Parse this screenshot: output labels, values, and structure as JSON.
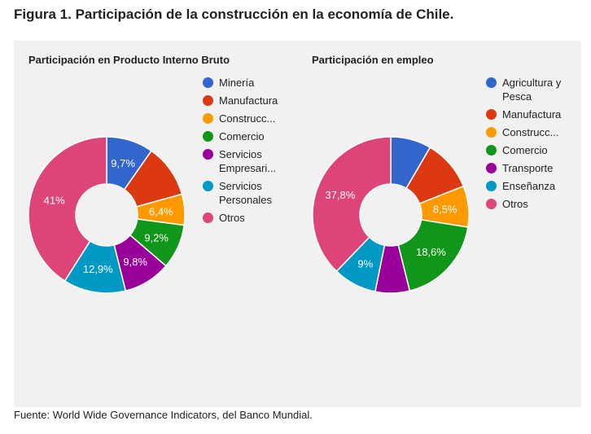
{
  "title": "Figura 1. Participación de la construcción en la economía de Chile.",
  "footer": "Fuente: World Wide Governance Indicators, del Banco Mundial.",
  "chart_data": [
    {
      "type": "pie",
      "title": "Participación en Producto Interno Bruto",
      "donut": true,
      "slices": [
        {
          "name": "Minería",
          "legend": [
            "Minería"
          ],
          "value": 9.7,
          "label": "9,7%",
          "color": "#3366cc"
        },
        {
          "name": "Manufactura",
          "legend": [
            "Manufactura"
          ],
          "value": 11.0,
          "label": null,
          "color": "#dc3912"
        },
        {
          "name": "Construcción",
          "legend": [
            "Construcc..."
          ],
          "value": 6.4,
          "label": "6,4%",
          "color": "#ff9900"
        },
        {
          "name": "Comercio",
          "legend": [
            "Comercio"
          ],
          "value": 9.2,
          "label": "9,2%",
          "color": "#109618"
        },
        {
          "name": "Servicios Empresariales",
          "legend": [
            "Servicios",
            "Empresari..."
          ],
          "value": 9.8,
          "label": "9,8%",
          "color": "#990099"
        },
        {
          "name": "Servicios Personales",
          "legend": [
            "Servicios",
            "Personales"
          ],
          "value": 12.9,
          "label": "12,9%",
          "color": "#0099c6"
        },
        {
          "name": "Otros",
          "legend": [
            "Otros"
          ],
          "value": 41,
          "label": "41%",
          "color": "#dd4477"
        }
      ]
    },
    {
      "type": "pie",
      "title": "Participación en empleo",
      "donut": true,
      "slices": [
        {
          "name": "Agricultura y Pesca",
          "legend": [
            "Agricultura y",
            "Pesca"
          ],
          "value": 8.4,
          "label": null,
          "color": "#3366cc"
        },
        {
          "name": "Manufactura",
          "legend": [
            "Manufactura"
          ],
          "value": 10.6,
          "label": null,
          "color": "#dc3912"
        },
        {
          "name": "Construcción",
          "legend": [
            "Construcc..."
          ],
          "value": 8.5,
          "label": "8,5%",
          "color": "#ff9900"
        },
        {
          "name": "Comercio",
          "legend": [
            "Comercio"
          ],
          "value": 18.6,
          "label": "18,6%",
          "color": "#109618"
        },
        {
          "name": "Transporte",
          "legend": [
            "Transporte"
          ],
          "value": 7.1,
          "label": null,
          "color": "#990099"
        },
        {
          "name": "Enseñanza",
          "legend": [
            "Enseñanza"
          ],
          "value": 9,
          "label": "9%",
          "color": "#0099c6"
        },
        {
          "name": "Otros",
          "legend": [
            "Otros"
          ],
          "value": 37.8,
          "label": "37,8%",
          "color": "#dd4477"
        }
      ]
    }
  ]
}
